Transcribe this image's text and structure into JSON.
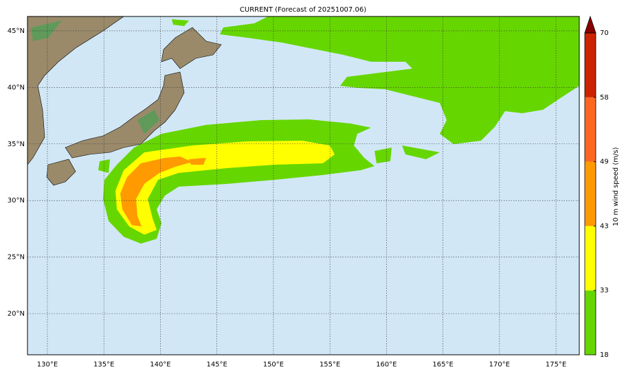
{
  "map": {
    "title": "CURRENT (Forecast of 20251007.06)",
    "xlim": [
      128.24,
      177.06
    ],
    "ylim": [
      16.36,
      46.27
    ],
    "xticks": [
      {
        "value": 130,
        "label": "130°E"
      },
      {
        "value": 135,
        "label": "135°E"
      },
      {
        "value": 140,
        "label": "140°E"
      },
      {
        "value": 145,
        "label": "145°E"
      },
      {
        "value": 150,
        "label": "150°E"
      },
      {
        "value": 155,
        "label": "155°E"
      },
      {
        "value": 160,
        "label": "160°E"
      },
      {
        "value": 165,
        "label": "165°E"
      },
      {
        "value": 170,
        "label": "170°E"
      },
      {
        "value": 175,
        "label": "175°E"
      }
    ],
    "yticks": [
      {
        "value": 20,
        "label": "20°N"
      },
      {
        "value": 25,
        "label": "25°N"
      },
      {
        "value": 30,
        "label": "30°N"
      },
      {
        "value": 35,
        "label": "35°N"
      },
      {
        "value": 40,
        "label": "40°N"
      },
      {
        "value": 45,
        "label": "45°N"
      }
    ],
    "grid": true,
    "colorbar": {
      "label": "10 m wind speed (m/s)",
      "levels": [
        18,
        33,
        43,
        49,
        58,
        70
      ],
      "colors": [
        "#66d600",
        "#ffff00",
        "#ff9a00",
        "#ff6622",
        "#cc2200"
      ],
      "extend_color": "#880000"
    }
  }
}
